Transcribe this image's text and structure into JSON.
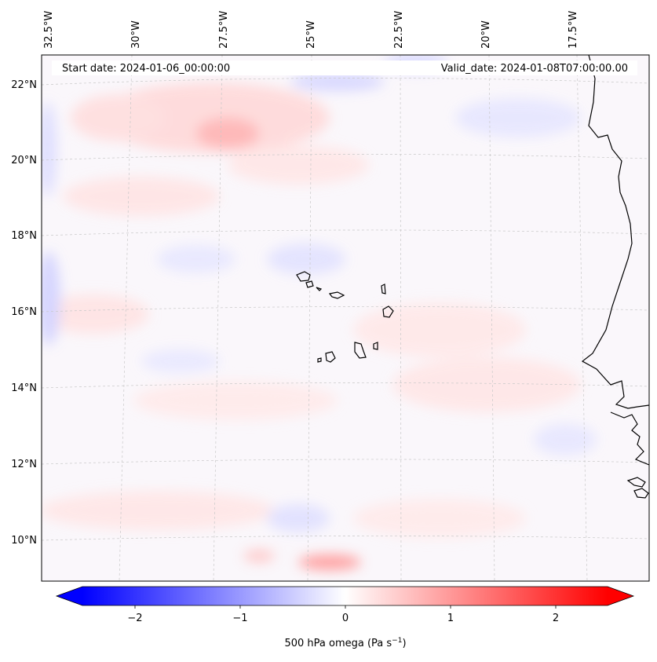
{
  "header": {
    "start_date": "Start date: 2024-01-06_00:00:00",
    "valid_date": "Valid_date: 2024-01-08T07:00:00.00"
  },
  "map": {
    "lon_labels": [
      "32.5°W",
      "30°W",
      "27.5°W",
      "25°W",
      "22.5°W",
      "20°W",
      "17.5°W"
    ],
    "lat_labels": [
      "22°N",
      "20°N",
      "18°N",
      "16°N",
      "14°N",
      "12°N",
      "10°N"
    ],
    "gridlines": "dashed light grey",
    "field_colors": {
      "positive": "#ff9a9a",
      "negative": "#b9b9ff",
      "neutral": "#faf7fb"
    },
    "coastline_color": "#000000"
  },
  "colorbar": {
    "ticks": [
      "−2",
      "−1",
      "0",
      "1",
      "2"
    ],
    "label_main": "500 hPa omega (Pa s",
    "label_sup": "−1",
    "label_end": ")",
    "colormap": "bwr",
    "range": [
      -2.5,
      2.5
    ],
    "extend": "both"
  }
}
